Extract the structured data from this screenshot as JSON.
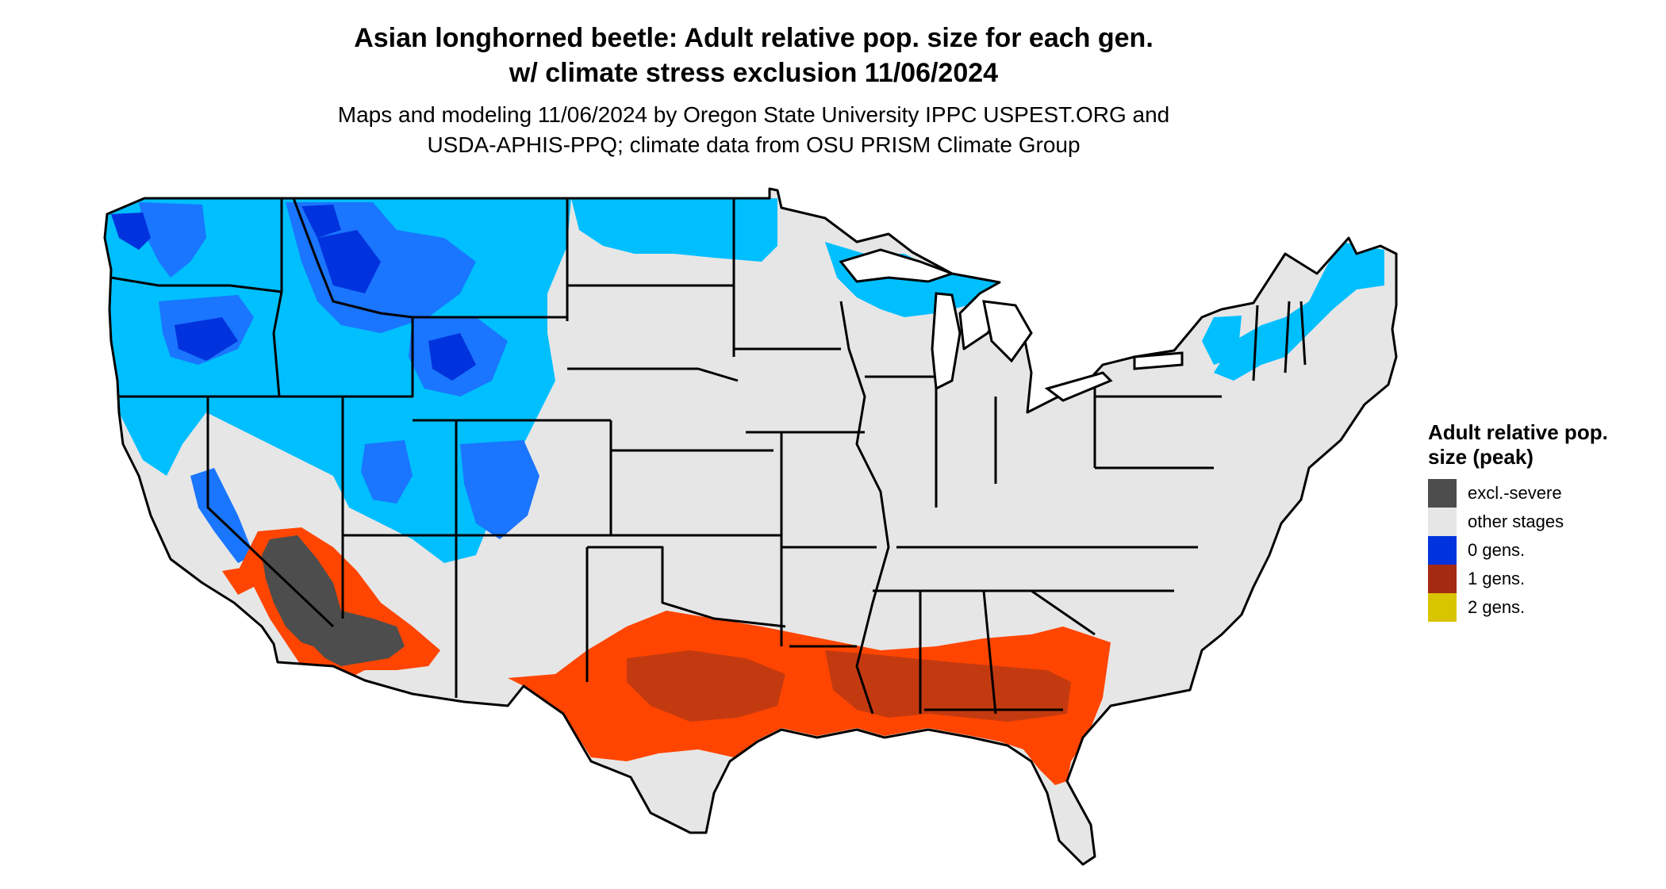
{
  "title_line1": "Asian longhorned beetle: Adult relative pop. size for each gen.",
  "title_line2": "w/ climate stress exclusion 11/06/2024",
  "subtitle_line1": "Maps and modeling 11/06/2024 by Oregon State University IPPC USPEST.ORG and",
  "subtitle_line2": "USDA-APHIS-PPQ; climate data from OSU PRISM Climate Group",
  "legend": {
    "title": "Adult relative pop. size (peak)",
    "items": [
      {
        "label": "excl.-severe",
        "color": "#4d4d4d"
      },
      {
        "label": "other stages",
        "color": "#e6e6e6"
      },
      {
        "label": "0 gens.",
        "color": "#0033dd"
      },
      {
        "label": "1 gens.",
        "color": "#a52a12"
      },
      {
        "label": "2 gens.",
        "color": "#d9c400"
      }
    ]
  },
  "map_colors": {
    "background_land": "#e6e6e6",
    "boundary": "#000000",
    "zero_gens_light": "#00bfff",
    "zero_gens_mid": "#1a75ff",
    "zero_gens_dark": "#0033dd",
    "one_gen_bright": "#ff4500",
    "one_gen_dark": "#c43a10",
    "excluded_severe": "#4d4d4d"
  }
}
